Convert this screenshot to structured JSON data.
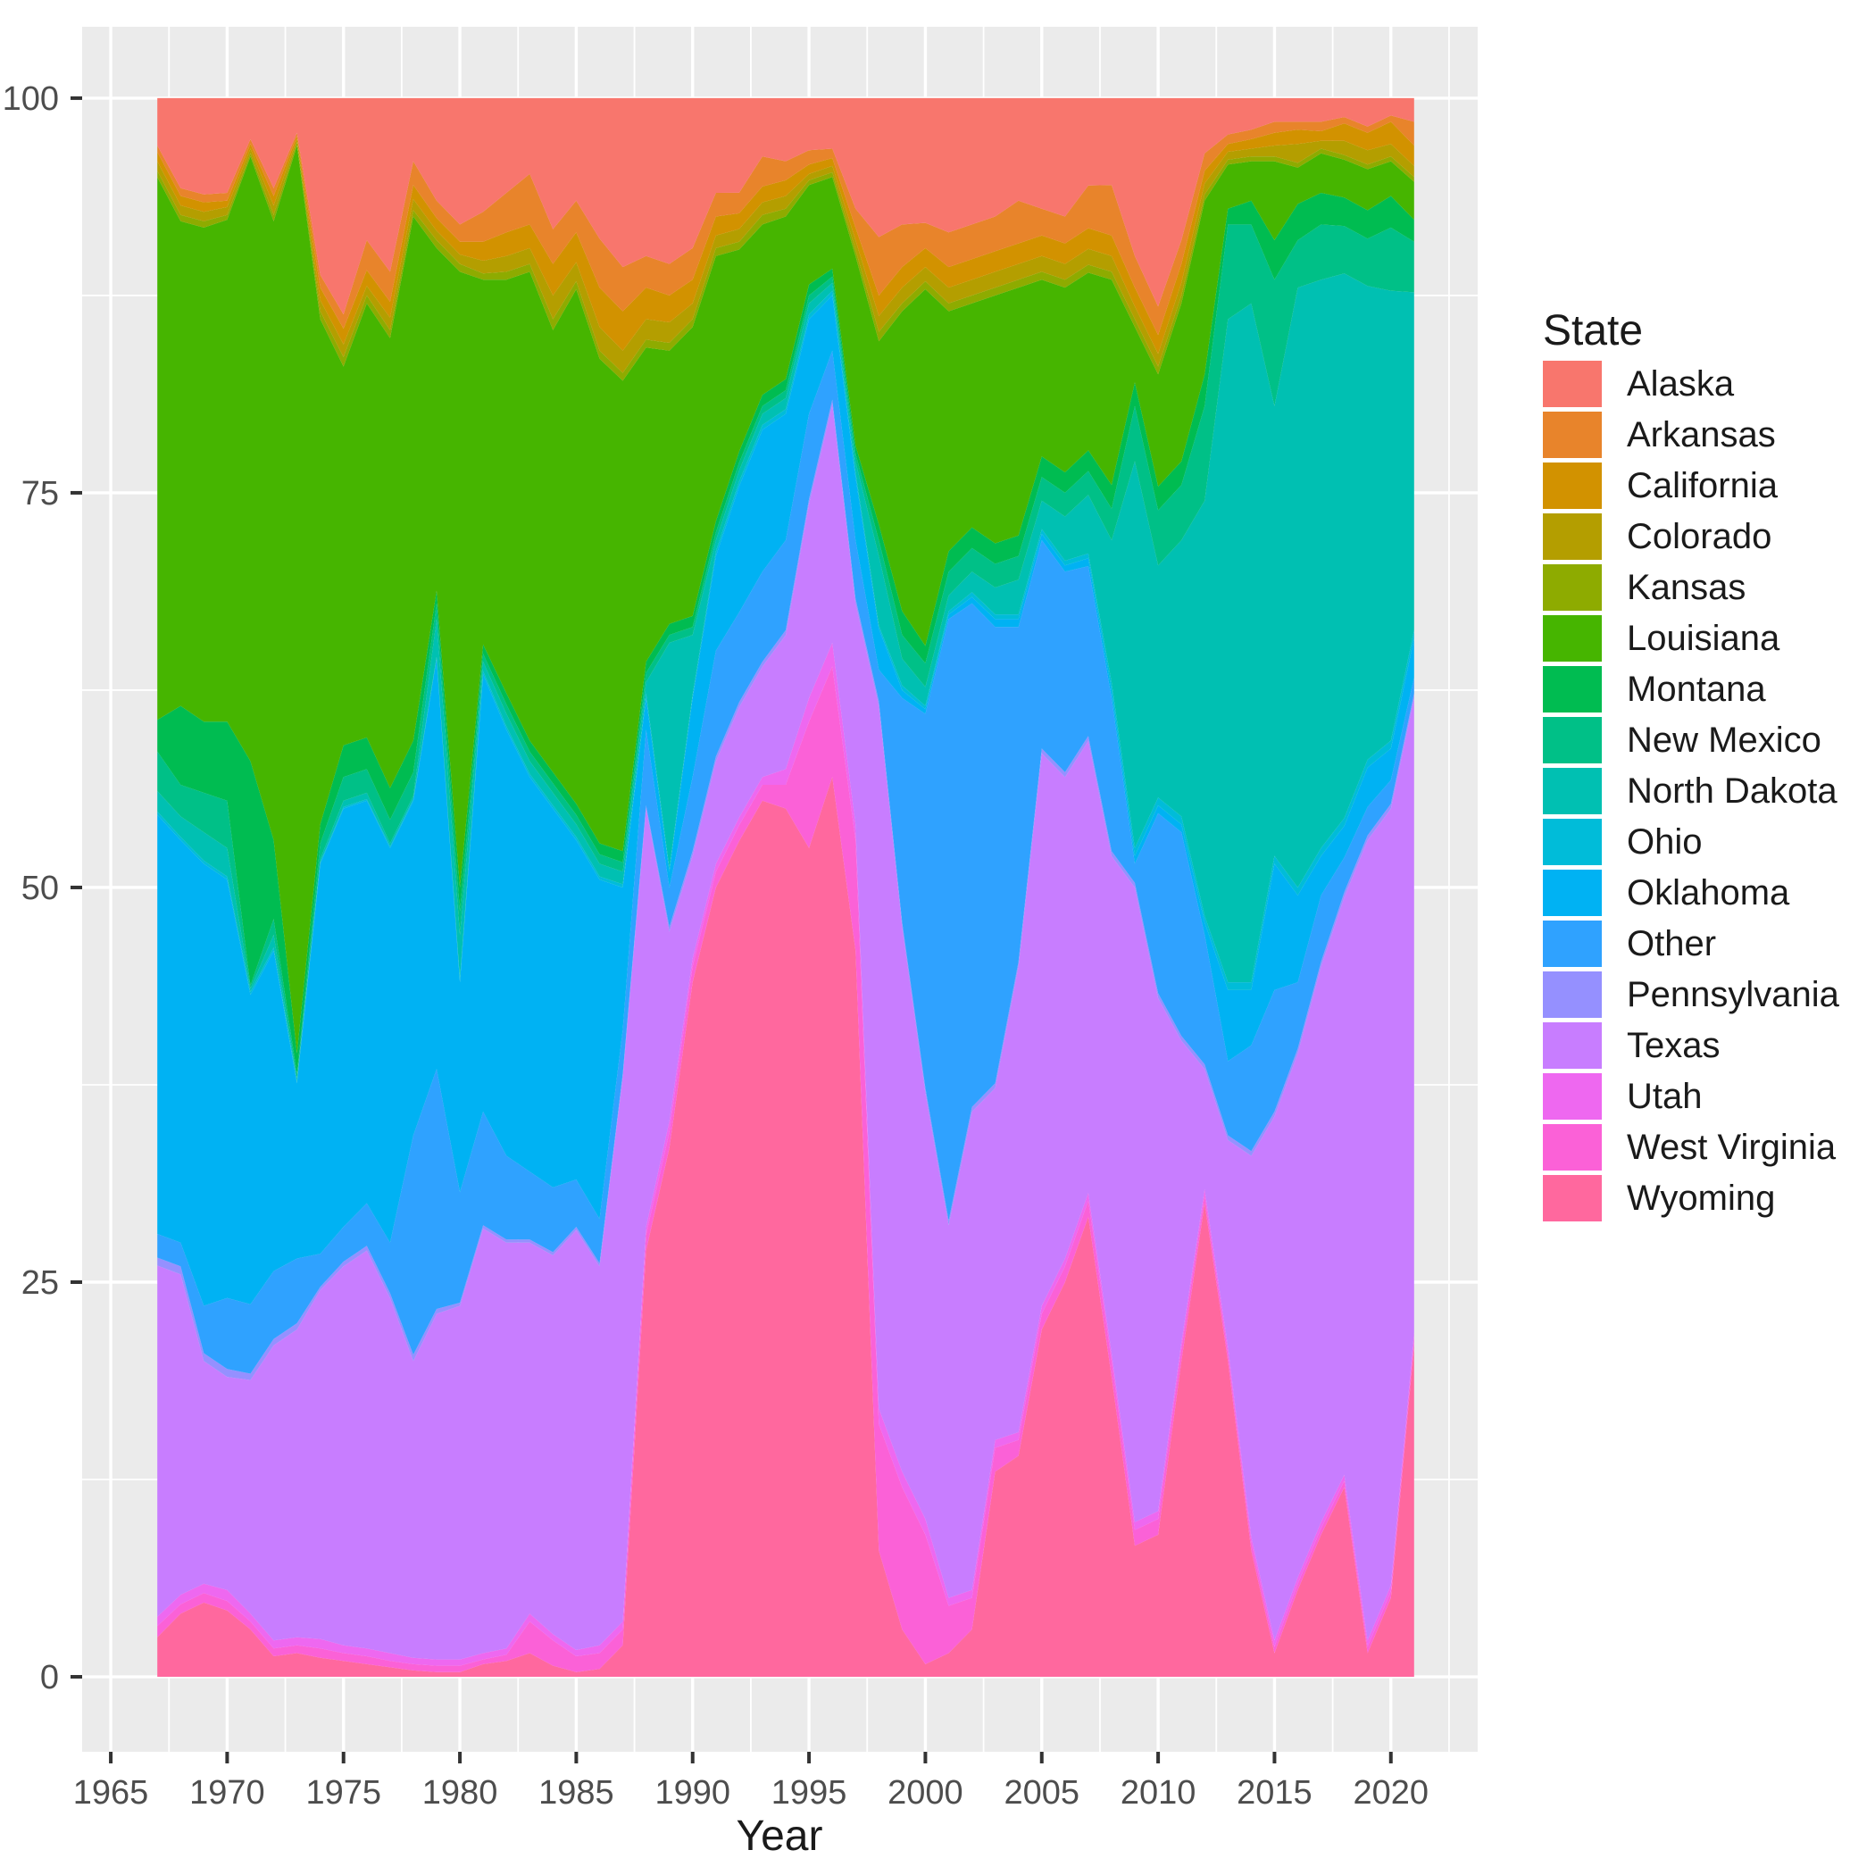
{
  "figure": {
    "background": "#FFFFFF",
    "panel_background": "#EBEBEB",
    "grid_color": "#FFFFFF",
    "tick_color": "#333333",
    "tick_label_color": "#4D4D4D",
    "title_color": "#1A1A1A"
  },
  "axes": {
    "x": {
      "label": "Year",
      "tick_labels": [
        "1965",
        "1970",
        "1975",
        "1980",
        "1985",
        "1990",
        "1995",
        "2000",
        "2005",
        "2010",
        "2015",
        "2020"
      ],
      "tick_values": [
        1965,
        1970,
        1975,
        1980,
        1985,
        1990,
        1995,
        2000,
        2005,
        2010,
        2015,
        2020
      ]
    },
    "y": {
      "label": "",
      "tick_labels": [
        "0",
        "25",
        "50",
        "75",
        "100"
      ],
      "tick_values": [
        0,
        25,
        50,
        75,
        100
      ]
    }
  },
  "legend": {
    "title": "State",
    "entries": [
      {
        "label": "Alaska",
        "color": "#F8766D"
      },
      {
        "label": "Arkansas",
        "color": "#E8842B"
      },
      {
        "label": "California",
        "color": "#D29200"
      },
      {
        "label": "Colorado",
        "color": "#B49E00"
      },
      {
        "label": "Kansas",
        "color": "#8EAB00"
      },
      {
        "label": "Louisiana",
        "color": "#46B500"
      },
      {
        "label": "Montana",
        "color": "#00BC51"
      },
      {
        "label": "New Mexico",
        "color": "#00C087"
      },
      {
        "label": "North Dakota",
        "color": "#00C0B2"
      },
      {
        "label": "Ohio",
        "color": "#00BCD9"
      },
      {
        "label": "Oklahoma",
        "color": "#00B2F3"
      },
      {
        "label": "Other",
        "color": "#2FA2FF"
      },
      {
        "label": "Pennsylvania",
        "color": "#9590FF"
      },
      {
        "label": "Texas",
        "color": "#C87DFF"
      },
      {
        "label": "Utah",
        "color": "#EE68F0"
      },
      {
        "label": "West Virginia",
        "color": "#FB61D7"
      },
      {
        "label": "Wyoming",
        "color": "#FF689E"
      }
    ]
  },
  "chart_data": {
    "type": "area",
    "stacked": true,
    "normalized_percent": true,
    "title": "",
    "xlabel": "Year",
    "ylabel": "",
    "xlim": [
      1963.77,
      2023.73
    ],
    "ylim": [
      0,
      100
    ],
    "panel_value_range": [
      -4.75,
      104.52
    ],
    "grid": true,
    "legend_position": "right",
    "stack_bottom_to_top": [
      "Wyoming",
      "West Virginia",
      "Utah",
      "Texas",
      "Pennsylvania",
      "Other",
      "Oklahoma",
      "Ohio",
      "North Dakota",
      "New Mexico",
      "Montana",
      "Louisiana",
      "Kansas",
      "Colorado",
      "California",
      "Arkansas",
      "Alaska"
    ],
    "x": [
      1967,
      1968,
      1969,
      1970,
      1971,
      1972,
      1973,
      1974,
      1975,
      1976,
      1977,
      1978,
      1979,
      1980,
      1981,
      1982,
      1983,
      1984,
      1985,
      1986,
      1987,
      1988,
      1989,
      1990,
      1991,
      1992,
      1993,
      1994,
      1995,
      1996,
      1997,
      1998,
      1999,
      2000,
      2001,
      2002,
      2003,
      2004,
      2005,
      2006,
      2007,
      2008,
      2009,
      2010,
      2011,
      2012,
      2013,
      2014,
      2015,
      2016,
      2017,
      2018,
      2019,
      2020,
      2021
    ],
    "series": [
      {
        "name": "Alaska",
        "color": "#F8766D",
        "values": [
          3.0,
          5.7,
          6.1,
          6.0,
          2.6,
          5.7,
          2.2,
          11.2,
          13.7,
          9.0,
          11.0,
          4.0,
          6.5,
          8.0,
          7.2,
          6.0,
          4.8,
          8.3,
          6.5,
          8.9,
          10.7,
          10.0,
          10.5,
          9.5,
          6.0,
          6.0,
          3.7,
          4.0,
          3.3,
          3.2,
          7.0,
          8.8,
          8.0,
          7.9,
          8.5,
          8.0,
          7.5,
          6.5,
          7.0,
          7.5,
          5.5,
          5.5,
          10.0,
          13.2,
          9.0,
          3.5,
          2.3,
          2.0,
          1.5,
          1.5,
          1.5,
          1.2,
          1.8,
          1.1,
          1.5
        ]
      },
      {
        "name": "Arkansas",
        "color": "#E8842B",
        "values": [
          0.4,
          0.5,
          0.5,
          0.5,
          0.3,
          0.5,
          0.2,
          0.8,
          0.9,
          1.9,
          1.9,
          1.5,
          1.1,
          1.1,
          1.9,
          2.5,
          3.2,
          2.2,
          2.0,
          3.1,
          2.8,
          2.0,
          2.0,
          2.0,
          1.5,
          1.3,
          1.9,
          1.2,
          0.9,
          0.6,
          1.2,
          3.7,
          2.7,
          1.6,
          2.2,
          2.2,
          2.2,
          2.7,
          1.7,
          1.7,
          2.7,
          3.2,
          2.0,
          1.8,
          1.5,
          1.1,
          0.6,
          0.6,
          0.7,
          0.5,
          0.6,
          0.4,
          0.4,
          0.4,
          1.5
        ]
      },
      {
        "name": "California",
        "color": "#D29200",
        "values": [
          0.6,
          0.6,
          0.6,
          0.4,
          0.3,
          0.6,
          0.2,
          0.8,
          1.0,
          1.0,
          1.0,
          0.9,
          0.8,
          0.8,
          1.2,
          1.5,
          1.5,
          2.0,
          1.9,
          2.5,
          2.5,
          2.0,
          1.7,
          1.5,
          1.2,
          1.0,
          1.0,
          1.0,
          0.6,
          0.5,
          0.8,
          1.3,
          1.3,
          1.2,
          1.3,
          1.3,
          1.3,
          1.3,
          1.3,
          1.3,
          1.3,
          1.3,
          1.2,
          1.2,
          1.2,
          0.8,
          0.5,
          0.6,
          0.8,
          0.9,
          0.6,
          1.1,
          1.1,
          1.4,
          1.3
        ]
      },
      {
        "name": "Colorado",
        "color": "#B49E00",
        "values": [
          0.6,
          0.6,
          0.6,
          0.5,
          0.3,
          0.6,
          0.2,
          0.7,
          0.8,
          0.6,
          0.8,
          0.7,
          0.6,
          0.6,
          0.8,
          1.0,
          1.0,
          1.5,
          1.2,
          1.5,
          1.4,
          1.3,
          1.3,
          1.0,
          0.8,
          0.8,
          0.8,
          0.8,
          0.4,
          0.4,
          0.6,
          1.0,
          1.0,
          0.9,
          1.0,
          1.0,
          1.0,
          1.0,
          1.0,
          1.0,
          1.0,
          1.0,
          0.8,
          0.8,
          0.8,
          0.7,
          0.5,
          0.5,
          0.7,
          1.2,
          0.5,
          0.9,
          0.9,
          0.8,
          0.7
        ]
      },
      {
        "name": "Kansas",
        "color": "#8EAB00",
        "values": [
          0.4,
          0.4,
          0.4,
          0.3,
          0.2,
          0.4,
          0.2,
          0.5,
          0.6,
          0.5,
          0.5,
          0.4,
          0.5,
          0.5,
          0.4,
          0.5,
          0.5,
          0.7,
          0.5,
          0.5,
          0.5,
          0.5,
          0.5,
          0.5,
          0.5,
          0.5,
          0.6,
          0.5,
          0.3,
          0.3,
          0.4,
          0.6,
          0.5,
          0.5,
          0.5,
          0.5,
          0.5,
          0.5,
          0.5,
          0.5,
          0.5,
          0.5,
          0.5,
          0.5,
          0.5,
          0.4,
          0.3,
          0.3,
          0.3,
          0.3,
          0.3,
          0.3,
          0.3,
          0.3,
          0.3
        ]
      },
      {
        "name": "Louisiana",
        "color": "#46B500",
        "values": [
          34.3,
          30.7,
          31.3,
          31.8,
          38.3,
          39.2,
          57.5,
          32.0,
          24.0,
          27.5,
          28.5,
          33.2,
          21.7,
          39.0,
          23.1,
          26.2,
          29.7,
          28.0,
          32.6,
          30.7,
          29.8,
          19.9,
          17.3,
          18.3,
          16.8,
          12.8,
          10.8,
          10.3,
          6.3,
          5.8,
          12.0,
          11.6,
          19.0,
          22.6,
          15.2,
          14.2,
          15.7,
          15.7,
          11.2,
          11.7,
          11.2,
          13.0,
          3.5,
          7.1,
          10.0,
          11.0,
          2.8,
          2.5,
          5.0,
          2.3,
          2.5,
          2.4,
          2.6,
          2.2,
          2.4
        ]
      },
      {
        "name": "Montana",
        "color": "#00BC51",
        "values": [
          2.0,
          5.0,
          4.5,
          5.0,
          14.2,
          5.0,
          1.3,
          1.2,
          2.0,
          2.0,
          2.0,
          2.0,
          0.8,
          1.5,
          0.6,
          0.7,
          0.7,
          0.7,
          0.7,
          0.7,
          0.7,
          0.7,
          0.7,
          0.7,
          0.7,
          0.7,
          0.7,
          0.7,
          0.7,
          0.5,
          0.5,
          1.0,
          1.5,
          1.1,
          1.3,
          1.3,
          1.3,
          1.3,
          1.3,
          1.3,
          1.3,
          1.5,
          1.5,
          1.5,
          1.5,
          2.0,
          1.0,
          1.5,
          2.5,
          2.3,
          2.0,
          1.8,
          1.8,
          2.0,
          1.4
        ]
      },
      {
        "name": "New Mexico",
        "color": "#00C087",
        "values": [
          2.5,
          2.0,
          2.5,
          3.0,
          0.2,
          1.0,
          0.3,
          1.0,
          1.5,
          1.5,
          1.5,
          1.5,
          1.0,
          1.5,
          0.5,
          0.6,
          0.6,
          0.6,
          0.6,
          0.6,
          0.6,
          0.6,
          0.5,
          0.5,
          0.5,
          0.5,
          0.5,
          0.5,
          0.5,
          0.4,
          0.5,
          1.0,
          1.5,
          1.5,
          1.5,
          1.5,
          1.5,
          1.5,
          1.5,
          1.5,
          1.5,
          2.0,
          3.5,
          3.5,
          3.5,
          6.0,
          6.0,
          5.0,
          8.0,
          3.0,
          3.5,
          3.0,
          3.0,
          4.0,
          3.2
        ]
      },
      {
        "name": "North Dakota",
        "color": "#00C0B2",
        "values": [
          1.3,
          1.3,
          1.8,
          1.8,
          0.2,
          0.8,
          0.2,
          0.2,
          0.4,
          0.4,
          0.2,
          0.2,
          2.4,
          2.8,
          0.6,
          0.8,
          0.8,
          0.8,
          0.8,
          0.8,
          0.8,
          0.7,
          14.3,
          3.8,
          0.7,
          0.7,
          0.7,
          0.7,
          0.7,
          0.5,
          0.7,
          4.4,
          1.7,
          1.2,
          1.0,
          1.3,
          1.7,
          2.2,
          1.8,
          2.8,
          3.7,
          9.0,
          24.5,
          14.7,
          17.5,
          26.3,
          42.0,
          43.0,
          28.5,
          38.0,
          36.0,
          34.5,
          30.0,
          28.5,
          21.4
        ]
      },
      {
        "name": "Ohio",
        "color": "#00BCD9",
        "values": [
          0.2,
          0.2,
          0.2,
          0.2,
          0.2,
          0.2,
          0.1,
          0.1,
          0.1,
          0.1,
          0.1,
          0.1,
          0.1,
          0.2,
          0.2,
          0.2,
          0.2,
          0.2,
          0.2,
          0.2,
          0.2,
          0.3,
          0.2,
          0.2,
          0.3,
          0.3,
          0.3,
          0.3,
          0.3,
          0.3,
          0.3,
          0.2,
          0.3,
          0.2,
          0.2,
          0.3,
          0.3,
          0.3,
          0.3,
          0.3,
          0.3,
          0.5,
          0.5,
          0.5,
          0.5,
          0.4,
          0.5,
          0.5,
          0.5,
          0.5,
          0.5,
          0.5,
          0.5,
          0.5,
          0.5
        ]
      },
      {
        "name": "Oklahoma",
        "color": "#00B2F3",
        "values": [
          26.5,
          25.5,
          28.0,
          26.5,
          19.6,
          20.3,
          11.1,
          24.7,
          26.5,
          25.5,
          25.0,
          21.2,
          26.0,
          13.3,
          27.7,
          27.0,
          25.0,
          24.0,
          21.5,
          21.5,
          9.0,
          2.0,
          1.0,
          5.0,
          6.0,
          8.0,
          9.0,
          8.0,
          6.0,
          3.5,
          4.0,
          2.6,
          0.5,
          0.3,
          0.3,
          0.4,
          0.5,
          0.5,
          0.4,
          0.4,
          0.5,
          0.5,
          0.5,
          0.5,
          0.5,
          0.8,
          4.5,
          3.5,
          8.0,
          5.5,
          2.5,
          2.0,
          2.5,
          2.0,
          2.5
        ]
      },
      {
        "name": "Other",
        "color": "#2FA2FF",
        "values": [
          1.5,
          1.5,
          3.0,
          4.5,
          4.4,
          4.3,
          4.1,
          2.1,
          2.2,
          2.7,
          3.2,
          13.9,
          15.2,
          7.0,
          7.2,
          5.3,
          4.3,
          4.1,
          3.0,
          2.8,
          2.8,
          4.8,
          2.5,
          4.7,
          6.7,
          5.7,
          5.7,
          5.7,
          5.4,
          3.1,
          3.7,
          2.0,
          14.2,
          23.7,
          38.1,
          31.9,
          28.9,
          21.2,
          13.2,
          12.7,
          10.7,
          9.7,
          1.2,
          11.4,
          12.9,
          8.2,
          4.7,
          6.7,
          7.7,
          4.2,
          4.2,
          2.2,
          1.8,
          1.5,
          1.0
        ]
      },
      {
        "name": "Pennsylvania",
        "color": "#9590FF",
        "values": [
          0.5,
          0.5,
          0.5,
          0.5,
          0.4,
          0.4,
          0.4,
          0.2,
          0.3,
          0.3,
          0.3,
          0.4,
          0.3,
          0.2,
          0.2,
          0.2,
          0.2,
          0.2,
          0.2,
          0.2,
          0.2,
          0.2,
          0.3,
          0.3,
          0.3,
          0.3,
          0.3,
          0.3,
          0.3,
          0.3,
          0.3,
          0.3,
          0.3,
          0.3,
          0.3,
          0.3,
          0.3,
          0.3,
          0.3,
          0.3,
          0.3,
          0.3,
          0.3,
          0.3,
          0.3,
          0.3,
          0.3,
          0.3,
          0.3,
          0.3,
          0.3,
          0.3,
          0.3,
          0.3,
          0.3
        ]
      },
      {
        "name": "Texas",
        "color": "#C87DFF",
        "values": [
          22.2,
          20.3,
          14.1,
          13.5,
          14.8,
          18.7,
          19.5,
          22.1,
          24.0,
          25.2,
          22.5,
          18.8,
          21.9,
          22.4,
          26.9,
          25.7,
          23.5,
          24.0,
          26.6,
          24.0,
          34.5,
          26.5,
          12.0,
          6.5,
          6.5,
          7.0,
          7.0,
          8.5,
          12.3,
          15.1,
          14.0,
          44.5,
          34.5,
          27.0,
          23.6,
          30.3,
          22.3,
          29.5,
          35.0,
          30.5,
          28.5,
          31.5,
          40.2,
          32.5,
          19.1,
          7.6,
          13.1,
          24.1,
          33.2,
          33.2,
          35.2,
          36.6,
          50.7,
          49.2,
          40.2
        ]
      },
      {
        "name": "Utah",
        "color": "#EE68F0",
        "values": [
          0.6,
          0.6,
          0.6,
          0.7,
          0.5,
          0.5,
          0.5,
          0.6,
          0.5,
          0.5,
          0.5,
          0.4,
          0.4,
          0.4,
          0.4,
          0.4,
          0.5,
          0.4,
          0.4,
          0.5,
          0.5,
          0.5,
          0.7,
          0.5,
          0.5,
          0.5,
          0.5,
          1.0,
          1.5,
          1.5,
          1.0,
          1.0,
          1.0,
          1.0,
          0.5,
          0.5,
          0.5,
          0.5,
          0.5,
          0.5,
          0.5,
          0.5,
          0.5,
          0.5,
          0.4,
          0.4,
          0.4,
          0.4,
          0.4,
          0.4,
          0.4,
          0.4,
          0.4,
          0.4,
          0.4
        ]
      },
      {
        "name": "West Virginia",
        "color": "#FB61D7",
        "values": [
          0.7,
          0.6,
          0.6,
          0.6,
          0.5,
          0.5,
          0.5,
          0.6,
          0.5,
          0.5,
          0.4,
          0.4,
          0.4,
          0.4,
          0.3,
          0.4,
          2.0,
          1.6,
          1.0,
          1.0,
          1.0,
          1.0,
          1.0,
          1.0,
          1.0,
          1.0,
          1.0,
          1.5,
          8.0,
          7.0,
          7.0,
          8.0,
          9.0,
          8.2,
          3.0,
          2.0,
          1.5,
          1.0,
          1.0,
          1.0,
          1.0,
          1.0,
          1.0,
          1.0,
          0.8,
          0.5,
          0.5,
          0.5,
          0.4,
          0.4,
          0.4,
          0.4,
          0.4,
          0.4,
          0.4
        ]
      },
      {
        "name": "Wyoming",
        "color": "#FF689E",
        "values": [
          2.5,
          4.0,
          4.7,
          4.2,
          3.0,
          1.3,
          1.5,
          1.2,
          1.0,
          0.8,
          0.6,
          0.4,
          0.3,
          0.3,
          0.8,
          1.0,
          1.5,
          0.7,
          0.3,
          0.5,
          2.0,
          27.0,
          33.5,
          44.0,
          50.0,
          53.0,
          55.5,
          55.0,
          52.5,
          57.0,
          46.0,
          8.0,
          3.0,
          0.8,
          1.5,
          3.0,
          13.0,
          14.0,
          22.0,
          25.0,
          29.0,
          19.0,
          8.3,
          9.0,
          20.0,
          30.0,
          20.0,
          8.0,
          1.5,
          5.5,
          9.0,
          12.0,
          1.5,
          5.0,
          21.0
        ]
      }
    ]
  }
}
